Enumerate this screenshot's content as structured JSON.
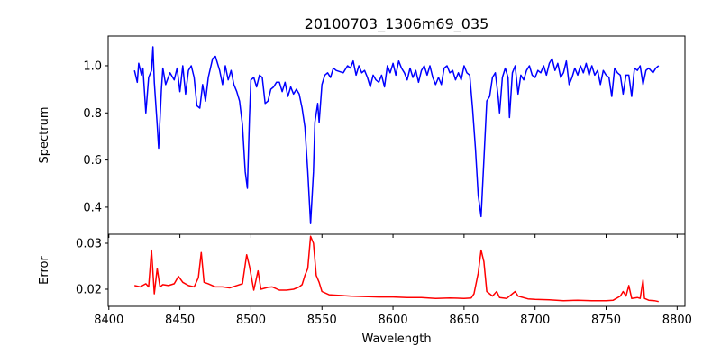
{
  "chart_data": [
    {
      "type": "line",
      "title": "20100703_1306m69_035",
      "xlabel": "",
      "ylabel": "Spectrum",
      "xlim": [
        8399.5,
        8805.5
      ],
      "ylim": [
        0.285,
        1.126
      ],
      "yticks": [
        "0.4",
        "0.6",
        "0.8",
        "1.0"
      ],
      "ytick_values": [
        0.4,
        0.6,
        0.8,
        1.0
      ],
      "grid": false,
      "series": [
        {
          "name": "Spectrum",
          "color": "#0000ff",
          "x": [
            8418,
            8420,
            8421,
            8423,
            8424,
            8426,
            8428,
            8430,
            8431,
            8432,
            8434,
            8435,
            8437,
            8438,
            8440,
            8443,
            8446,
            8448,
            8450,
            8452,
            8454,
            8456,
            8458,
            8460,
            8462,
            8464,
            8466,
            8468,
            8470,
            8473,
            8475,
            8478,
            8480,
            8482,
            8484,
            8486,
            8488,
            8490,
            8492,
            8494,
            8496,
            8497.5,
            8499,
            8500,
            8502,
            8504,
            8506,
            8508,
            8510,
            8512,
            8514,
            8516,
            8518,
            8520,
            8522,
            8524,
            8526,
            8528,
            8530,
            8532,
            8534,
            8536,
            8538,
            8540,
            8542,
            8544,
            8545,
            8547,
            8548,
            8550,
            8552,
            8554,
            8556,
            8558,
            8560,
            8565,
            8568,
            8570,
            8572,
            8574,
            8576,
            8578,
            8580,
            8582,
            8584,
            8586,
            8588,
            8590,
            8592,
            8594,
            8596,
            8598,
            8600,
            8602,
            8604,
            8606,
            8608,
            8610,
            8612,
            8614,
            8616,
            8618,
            8620,
            8622,
            8624,
            8626,
            8628,
            8630,
            8632,
            8634,
            8636,
            8638,
            8640,
            8642,
            8644,
            8646,
            8648,
            8650,
            8652,
            8654,
            8656,
            8658,
            8660,
            8662,
            8664,
            8666,
            8668,
            8670,
            8672,
            8674,
            8675,
            8677,
            8679,
            8681,
            8682,
            8684,
            8686,
            8688,
            8690,
            8692,
            8694,
            8696,
            8698,
            8700,
            8702,
            8704,
            8706,
            8708,
            8710,
            8712,
            8714,
            8716,
            8718,
            8720,
            8722,
            8724,
            8726,
            8728,
            8730,
            8732,
            8734,
            8736,
            8738,
            8740,
            8742,
            8744,
            8746,
            8748,
            8750,
            8752,
            8754,
            8756,
            8758,
            8760,
            8762,
            8764,
            8766,
            8768,
            8770,
            8772,
            8774,
            8776,
            8778,
            8780,
            8783,
            8785,
            8787
          ],
          "y": [
            0.98,
            0.93,
            1.01,
            0.96,
            0.99,
            0.8,
            0.95,
            0.98,
            1.08,
            0.93,
            0.75,
            0.65,
            0.9,
            0.99,
            0.92,
            0.97,
            0.94,
            0.99,
            0.89,
            1.0,
            0.88,
            0.98,
            1.0,
            0.95,
            0.83,
            0.82,
            0.92,
            0.85,
            0.95,
            1.03,
            1.04,
            0.98,
            0.92,
            1.0,
            0.94,
            0.98,
            0.92,
            0.89,
            0.85,
            0.75,
            0.55,
            0.48,
            0.78,
            0.94,
            0.95,
            0.91,
            0.96,
            0.95,
            0.84,
            0.85,
            0.9,
            0.91,
            0.93,
            0.93,
            0.89,
            0.93,
            0.87,
            0.91,
            0.88,
            0.9,
            0.88,
            0.82,
            0.74,
            0.55,
            0.33,
            0.55,
            0.76,
            0.84,
            0.76,
            0.92,
            0.96,
            0.97,
            0.95,
            0.99,
            0.98,
            0.97,
            1.0,
            0.99,
            1.02,
            0.96,
            1.0,
            0.97,
            0.98,
            0.95,
            0.91,
            0.96,
            0.94,
            0.93,
            0.96,
            0.91,
            1.0,
            0.97,
            1.01,
            0.96,
            1.02,
            0.99,
            0.97,
            0.94,
            0.99,
            0.95,
            0.98,
            0.93,
            0.98,
            1.0,
            0.96,
            1.0,
            0.95,
            0.92,
            0.95,
            0.92,
            0.99,
            1.0,
            0.97,
            0.98,
            0.94,
            0.97,
            0.94,
            1.0,
            0.97,
            0.96,
            0.82,
            0.65,
            0.45,
            0.36,
            0.6,
            0.85,
            0.87,
            0.95,
            0.97,
            0.87,
            0.8,
            0.95,
            0.99,
            0.95,
            0.78,
            0.97,
            1.0,
            0.88,
            0.96,
            0.94,
            0.98,
            1.0,
            0.96,
            0.95,
            0.98,
            0.97,
            1.0,
            0.96,
            1.01,
            1.03,
            0.98,
            1.01,
            0.95,
            0.97,
            1.02,
            0.92,
            0.95,
            0.99,
            0.96,
            1.0,
            0.97,
            1.01,
            0.96,
            1.0,
            0.96,
            0.98,
            0.92,
            0.98,
            0.96,
            0.95,
            0.87,
            0.99,
            0.97,
            0.96,
            0.88,
            0.96,
            0.96,
            0.87,
            0.99,
            0.98,
            1.0,
            0.92,
            0.98,
            0.99,
            0.97,
            0.99,
            1.0
          ]
        }
      ]
    },
    {
      "type": "line",
      "xlabel": "Wavelength",
      "ylabel": "Error",
      "xlim": [
        8399.5,
        8805.5
      ],
      "ylim": [
        0.01627,
        0.03196
      ],
      "yticks": [
        "0.02",
        "0.03"
      ],
      "ytick_values": [
        0.02,
        0.03
      ],
      "xticks": [
        "8400",
        "8450",
        "8500",
        "8550",
        "8600",
        "8650",
        "8700",
        "8750",
        "8800"
      ],
      "xtick_values": [
        8400,
        8450,
        8500,
        8550,
        8600,
        8650,
        8700,
        8750,
        8800
      ],
      "grid": false,
      "series": [
        {
          "name": "Error",
          "color": "#ff0000",
          "x": [
            8418,
            8422,
            8426,
            8428,
            8430,
            8432,
            8434,
            8436,
            8438,
            8442,
            8446,
            8449,
            8452,
            8456,
            8460,
            8463,
            8465,
            8467,
            8470,
            8475,
            8480,
            8485,
            8490,
            8494,
            8497,
            8499,
            8502,
            8505,
            8507,
            8512,
            8515,
            8520,
            8525,
            8530,
            8534,
            8536,
            8538,
            8540,
            8542,
            8544,
            8546,
            8548,
            8550,
            8555,
            8560,
            8570,
            8580,
            8590,
            8600,
            8610,
            8620,
            8630,
            8640,
            8650,
            8655,
            8657,
            8660,
            8662,
            8664,
            8666,
            8670,
            8673,
            8675,
            8680,
            8686,
            8688,
            8695,
            8700,
            8710,
            8720,
            8730,
            8740,
            8750,
            8755,
            8760,
            8762,
            8764,
            8766,
            8768,
            8772,
            8774,
            8776,
            8777,
            8780,
            8784,
            8787
          ],
          "y": [
            0.0208,
            0.0205,
            0.0212,
            0.0205,
            0.0285,
            0.019,
            0.0245,
            0.0205,
            0.021,
            0.0208,
            0.0212,
            0.0228,
            0.0215,
            0.0208,
            0.0205,
            0.0225,
            0.028,
            0.0215,
            0.0212,
            0.0205,
            0.0205,
            0.0203,
            0.0208,
            0.0212,
            0.0275,
            0.025,
            0.0198,
            0.024,
            0.02,
            0.0204,
            0.0205,
            0.0198,
            0.0198,
            0.02,
            0.0205,
            0.021,
            0.023,
            0.0245,
            0.0315,
            0.03,
            0.023,
            0.0215,
            0.0195,
            0.0188,
            0.0187,
            0.0185,
            0.0184,
            0.0183,
            0.0183,
            0.0182,
            0.0182,
            0.018,
            0.0181,
            0.018,
            0.0181,
            0.019,
            0.0235,
            0.0285,
            0.026,
            0.0195,
            0.0185,
            0.0195,
            0.0182,
            0.018,
            0.0195,
            0.0185,
            0.0179,
            0.0178,
            0.0177,
            0.0175,
            0.0176,
            0.0175,
            0.0175,
            0.0176,
            0.0185,
            0.0195,
            0.0185,
            0.0208,
            0.018,
            0.0182,
            0.018,
            0.022,
            0.018,
            0.0176,
            0.0175,
            0.0173
          ]
        }
      ]
    }
  ]
}
